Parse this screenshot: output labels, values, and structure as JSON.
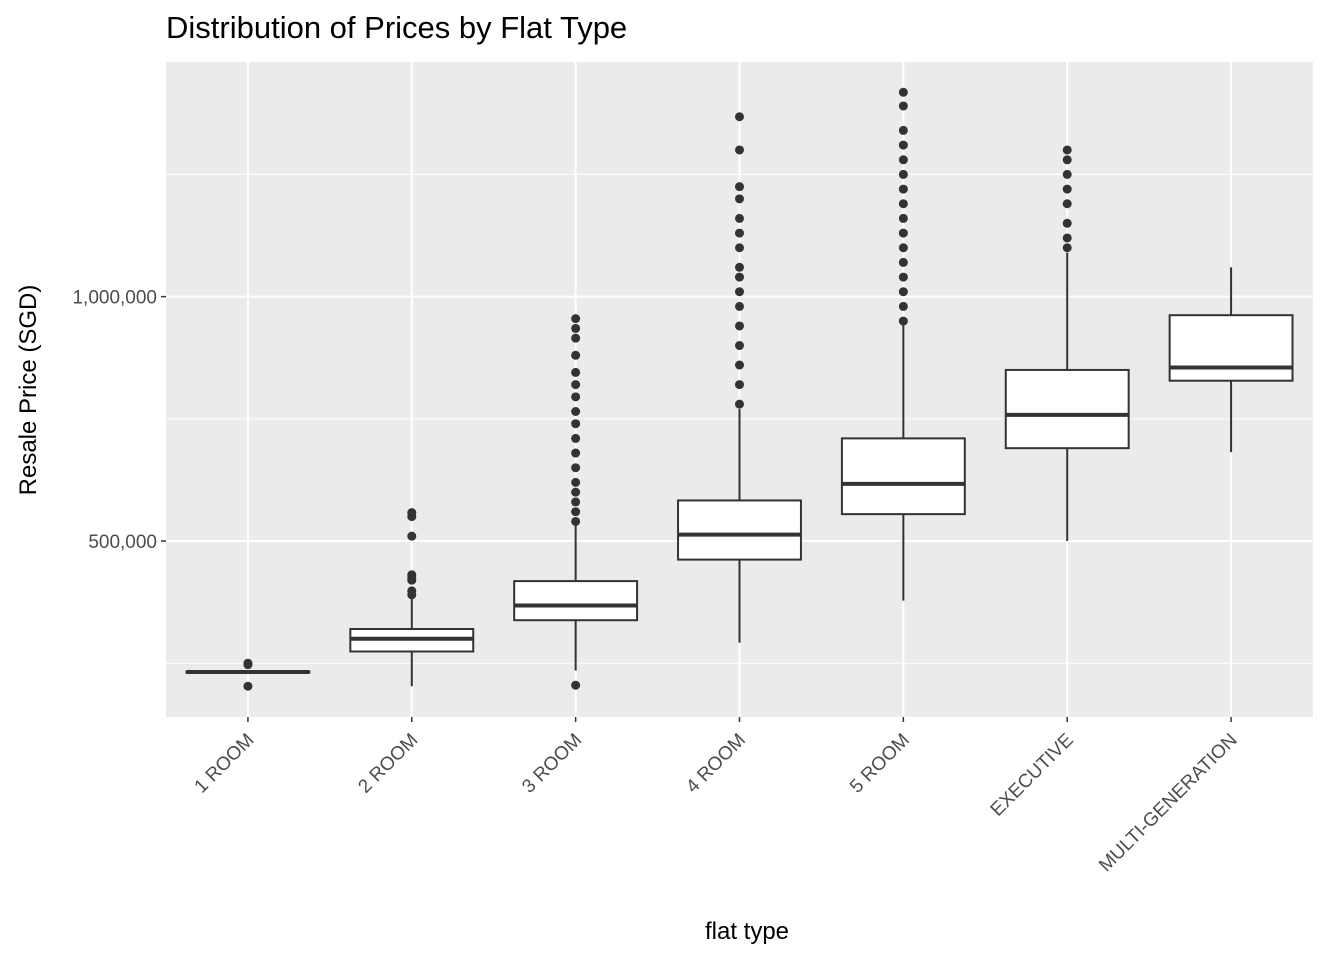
{
  "chart_data": {
    "type": "box",
    "title": "Distribution of Prices by Flat Type",
    "xlabel": "flat type",
    "ylabel": "Resale Price (SGD)",
    "ylim": [
      140000,
      1480000
    ],
    "yticks": [
      500000,
      1000000
    ],
    "ytick_labels": [
      "500,000",
      "1,000,000"
    ],
    "grid": true,
    "categories": [
      "1 ROOM",
      "2 ROOM",
      "3 ROOM",
      "4 ROOM",
      "5 ROOM",
      "EXECUTIVE",
      "MULTI-GENERATION"
    ],
    "boxes": [
      {
        "category": "1 ROOM",
        "whisker_low": 232000,
        "q1": 232000,
        "median": 232000,
        "q3": 233000,
        "whisker_high": 233000,
        "outliers": [
          203000,
          247000,
          250000
        ]
      },
      {
        "category": "2 ROOM",
        "whisker_low": 203000,
        "q1": 274000,
        "median": 300000,
        "q3": 320000,
        "whisker_high": 384000,
        "outliers": [
          390000,
          398000,
          420000,
          425000,
          431000,
          510000,
          550000,
          558000
        ]
      },
      {
        "category": "3 ROOM",
        "whisker_low": 235000,
        "q1": 338000,
        "median": 368000,
        "q3": 418000,
        "whisker_high": 535000,
        "outliers": [
          205000,
          540000,
          560000,
          580000,
          600000,
          620000,
          650000,
          680000,
          710000,
          740000,
          765000,
          795000,
          820000,
          845000,
          880000,
          915000,
          935000,
          955000
        ]
      },
      {
        "category": "4 ROOM",
        "whisker_low": 292000,
        "q1": 462000,
        "median": 513000,
        "q3": 583000,
        "whisker_high": 770000,
        "outliers": [
          780000,
          820000,
          860000,
          900000,
          940000,
          980000,
          1010000,
          1040000,
          1060000,
          1100000,
          1130000,
          1160000,
          1200000,
          1225000,
          1300000,
          1368000
        ]
      },
      {
        "category": "5 ROOM",
        "whisker_low": 378000,
        "q1": 555000,
        "median": 617000,
        "q3": 710000,
        "whisker_high": 945000,
        "outliers": [
          950000,
          980000,
          1010000,
          1040000,
          1070000,
          1100000,
          1130000,
          1160000,
          1190000,
          1220000,
          1250000,
          1280000,
          1310000,
          1340000,
          1390000,
          1418000
        ]
      },
      {
        "category": "EXECUTIVE",
        "whisker_low": 500000,
        "q1": 690000,
        "median": 758000,
        "q3": 850000,
        "whisker_high": 1090000,
        "outliers": [
          1100000,
          1120000,
          1150000,
          1190000,
          1220000,
          1250000,
          1280000,
          1300000
        ]
      },
      {
        "category": "MULTI-GENERATION",
        "whisker_low": 682000,
        "q1": 828000,
        "median": 855000,
        "q3": 962000,
        "whisker_high": 1060000,
        "outliers": []
      }
    ]
  }
}
